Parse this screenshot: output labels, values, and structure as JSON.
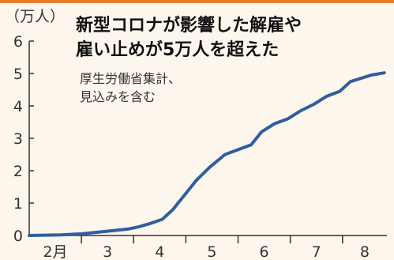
{
  "chart_data": {
    "type": "line",
    "title": "新型コロナが影響した解雇や雇い止めが5万人を超えた",
    "title_lines": [
      "新型コロナが影響した解雇や",
      "雇い止めが5万人を超えた"
    ],
    "subtitle_lines": [
      "厚生労働省集計、",
      "見込みを含む"
    ],
    "ylabel": "（万人）",
    "xlabel": "",
    "ylim": [
      0,
      6
    ],
    "yticks": [
      "0",
      "1",
      "2",
      "3",
      "4",
      "5",
      "6"
    ],
    "x_categories": [
      "2月",
      "3",
      "4",
      "5",
      "6",
      "7",
      "8"
    ],
    "grid": false,
    "series": [
      {
        "color": "#2f5f9e",
        "points": [
          {
            "x": 2.0,
            "y": 0.0
          },
          {
            "x": 2.3,
            "y": 0.01
          },
          {
            "x": 2.6,
            "y": 0.02
          },
          {
            "x": 3.0,
            "y": 0.05
          },
          {
            "x": 3.3,
            "y": 0.1
          },
          {
            "x": 3.6,
            "y": 0.15
          },
          {
            "x": 3.9,
            "y": 0.2
          },
          {
            "x": 4.1,
            "y": 0.27
          },
          {
            "x": 4.3,
            "y": 0.36
          },
          {
            "x": 4.55,
            "y": 0.5
          },
          {
            "x": 4.75,
            "y": 0.8
          },
          {
            "x": 5.0,
            "y": 1.3
          },
          {
            "x": 5.2,
            "y": 1.7
          },
          {
            "x": 5.45,
            "y": 2.1
          },
          {
            "x": 5.75,
            "y": 2.5
          },
          {
            "x": 6.0,
            "y": 2.65
          },
          {
            "x": 6.25,
            "y": 2.8
          },
          {
            "x": 6.45,
            "y": 3.2
          },
          {
            "x": 6.7,
            "y": 3.45
          },
          {
            "x": 6.95,
            "y": 3.6
          },
          {
            "x": 7.2,
            "y": 3.85
          },
          {
            "x": 7.45,
            "y": 4.05
          },
          {
            "x": 7.7,
            "y": 4.3
          },
          {
            "x": 7.95,
            "y": 4.45
          },
          {
            "x": 8.15,
            "y": 4.75
          },
          {
            "x": 8.35,
            "y": 4.85
          },
          {
            "x": 8.55,
            "y": 4.95
          },
          {
            "x": 8.8,
            "y": 5.02
          }
        ]
      }
    ]
  },
  "colors": {
    "background": "#fdf6ec",
    "line": "#2f5f9e",
    "axis": "#333333",
    "accent_rule": "#e27d2e"
  }
}
